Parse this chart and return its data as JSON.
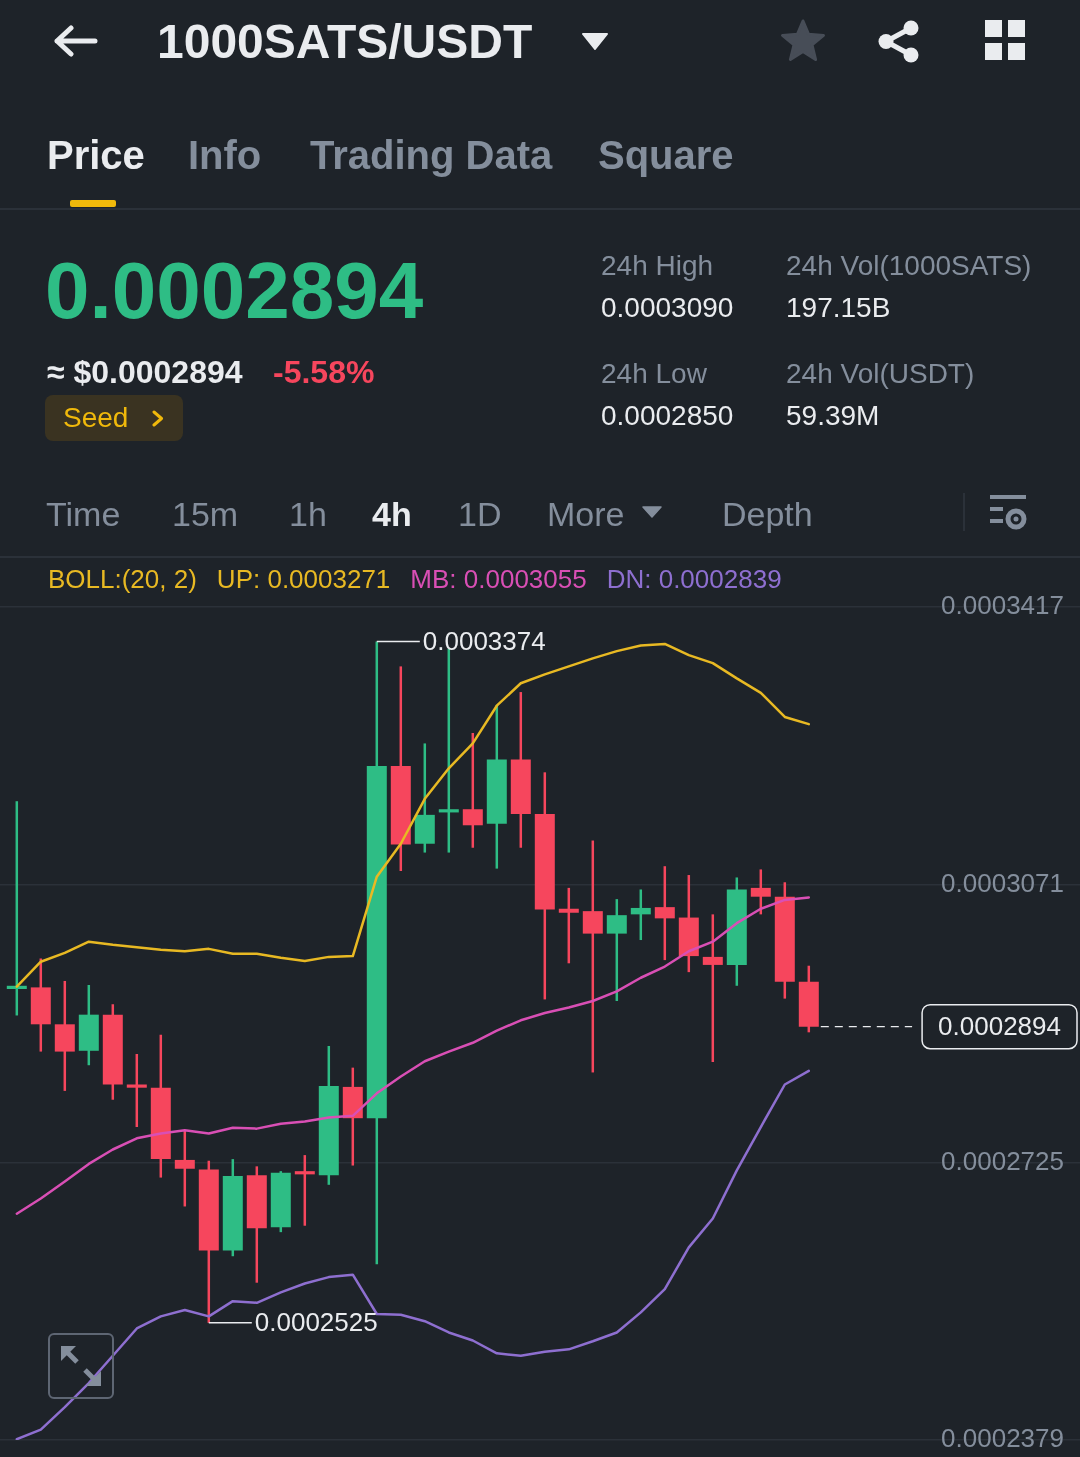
{
  "chart_data": {
    "type": "candlestick",
    "title": "1000SATS/USDT",
    "legend_title": "BOLL:(20, 2)",
    "categories": [
      null,
      null,
      null,
      null,
      null,
      null,
      null,
      null,
      null,
      null,
      null,
      null,
      null,
      null,
      null,
      null,
      null,
      null,
      null,
      null,
      null,
      null,
      null,
      null,
      null,
      null,
      null,
      null,
      null,
      null,
      null,
      null,
      null,
      null
    ],
    "ohlc": [
      [
        0.0002941,
        0.0003175,
        0.0002908,
        0.0002945
      ],
      [
        0.0002943,
        0.0002979,
        0.0002863,
        0.0002897
      ],
      [
        0.0002897,
        0.0002951,
        0.0002814,
        0.0002863
      ],
      [
        0.0002864,
        0.0002946,
        0.0002846,
        0.0002909
      ],
      [
        0.0002909,
        0.0002922,
        0.0002803,
        0.0002822
      ],
      [
        0.0002822,
        0.000286,
        0.0002769,
        0.0002818
      ],
      [
        0.0002818,
        0.0002884,
        0.0002706,
        0.0002729
      ],
      [
        0.0002728,
        0.0002765,
        0.000267,
        0.0002717
      ],
      [
        0.0002716,
        0.0002727,
        0.0002525,
        0.0002615
      ],
      [
        0.0002615,
        0.0002729,
        0.0002608,
        0.0002708
      ],
      [
        0.0002709,
        0.000272,
        0.0002575,
        0.0002643
      ],
      [
        0.0002644,
        0.0002714,
        0.0002638,
        0.0002712
      ],
      [
        0.0002714,
        0.0002734,
        0.0002646,
        0.000271
      ],
      [
        0.0002709,
        0.000287,
        0.0002697,
        0.000282
      ],
      [
        0.0002819,
        0.0002843,
        0.0002721,
        0.000278
      ],
      [
        0.000278,
        0.0003374,
        0.0002598,
        0.0003219
      ],
      [
        0.0003219,
        0.0003343,
        0.0003088,
        0.0003121
      ],
      [
        0.0003122,
        0.0003247,
        0.0003111,
        0.0003158
      ],
      [
        0.0003161,
        0.0003365,
        0.0003111,
        0.0003165
      ],
      [
        0.0003165,
        0.000326,
        0.0003117,
        0.0003145
      ],
      [
        0.0003147,
        0.0003295,
        0.0003091,
        0.0003227
      ],
      [
        0.0003227,
        0.0003311,
        0.0003117,
        0.0003159
      ],
      [
        0.0003159,
        0.0003211,
        0.0002928,
        0.000304
      ],
      [
        0.0003041,
        0.0003067,
        0.0002973,
        0.0003036
      ],
      [
        0.0003038,
        0.0003126,
        0.0002837,
        0.000301
      ],
      [
        0.000301,
        0.0003053,
        0.0002926,
        0.0003033
      ],
      [
        0.0003034,
        0.0003065,
        0.0003002,
        0.0003042
      ],
      [
        0.0003043,
        0.0003094,
        0.0002977,
        0.0003029
      ],
      [
        0.000303,
        0.0003083,
        0.0002962,
        0.0002982
      ],
      [
        0.0002981,
        0.0003034,
        0.000285,
        0.0002971
      ],
      [
        0.0002971,
        0.000308,
        0.0002945,
        0.0003065
      ],
      [
        0.0003067,
        0.000309,
        0.0003034,
        0.0003056
      ],
      [
        0.0003056,
        0.0003074,
        0.0002929,
        0.000295
      ],
      [
        0.000295,
        0.000297,
        0.0002887,
        0.0002894
      ]
    ],
    "colors": [
      "#2ebd85",
      "#f6465d",
      "#f6465d",
      "#2ebd85",
      "#f6465d",
      "#f6465d",
      "#f6465d",
      "#f6465d",
      "#f6465d",
      "#2ebd85",
      "#f6465d",
      "#2ebd85",
      "#f6465d",
      "#2ebd85",
      "#f6465d",
      "#2ebd85",
      "#f6465d",
      "#2ebd85",
      "#2ebd85",
      "#f6465d",
      "#2ebd85",
      "#f6465d",
      "#f6465d",
      "#f6465d",
      "#f6465d",
      "#2ebd85",
      "#2ebd85",
      "#f6465d",
      "#f6465d",
      "#f6465d",
      "#2ebd85",
      "#f6465d",
      "#f6465d",
      "#f6465d"
    ],
    "series": [
      {
        "name": "UP: 0.0003271",
        "type": "line",
        "color": "#e8b923",
        "values": [
          0.0002944,
          0.0002975,
          0.0002986,
          0.0003,
          0.0002996,
          0.0002993,
          0.000299,
          0.0002988,
          0.0002991,
          0.0002985,
          0.0002985,
          0.000298,
          0.0002976,
          0.0002981,
          0.0002982,
          0.0003081,
          0.0003122,
          0.0003178,
          0.0003216,
          0.0003247,
          0.0003294,
          0.0003322,
          0.0003333,
          0.0003343,
          0.0003353,
          0.0003362,
          0.0003369,
          0.0003371,
          0.0003357,
          0.0003347,
          0.0003328,
          0.000331,
          0.000328,
          0.0003271
        ]
      },
      {
        "name": "MB: 0.0003055",
        "type": "line",
        "color": "#d94fb5",
        "values": [
          0.0002661,
          0.000268,
          0.0002701,
          0.0002723,
          0.0002741,
          0.0002755,
          0.0002761,
          0.0002765,
          0.0002761,
          0.0002768,
          0.0002767,
          0.0002773,
          0.0002776,
          0.0002781,
          0.0002783,
          0.0002811,
          0.0002832,
          0.0002851,
          0.0002863,
          0.0002874,
          0.0002889,
          0.0002902,
          0.0002911,
          0.0002918,
          0.0002926,
          0.0002938,
          0.0002955,
          0.0002969,
          0.0002988,
          0.0003,
          0.0003023,
          0.0003041,
          0.0003052,
          0.0003055
        ]
      },
      {
        "name": "DN: 0.0002839",
        "type": "line",
        "color": "#8e6fd0",
        "values": [
          0.000238,
          0.0002392,
          0.000242,
          0.000245,
          0.0002484,
          0.0002518,
          0.0002533,
          0.0002541,
          0.0002533,
          0.0002552,
          0.000255,
          0.0002563,
          0.0002574,
          0.0002582,
          0.0002585,
          0.0002536,
          0.0002535,
          0.0002527,
          0.0002513,
          0.0002503,
          0.0002487,
          0.0002484,
          0.0002489,
          0.0002492,
          0.0002502,
          0.0002513,
          0.0002538,
          0.0002567,
          0.0002619,
          0.0002655,
          0.0002715,
          0.0002769,
          0.0002822,
          0.0002839
        ]
      }
    ],
    "ylim": [
      0.0002379,
      0.0003417
    ],
    "yticks": [
      0.0002379,
      0.0002725,
      0.0003071,
      0.0003417
    ],
    "grid": "y",
    "legend": "top",
    "marker": "none",
    "ref_lines": [
      {
        "axis": "y",
        "value": 0.0002894,
        "label": "0.0002894",
        "line_style": "dashed",
        "color": "#eaecef"
      }
    ],
    "annotations": [
      "0.0003374",
      "0.0002525",
      "Price",
      "Info",
      "Trading Data",
      "Square",
      "0.0002894",
      "≈ $0.0002894",
      "-5.58%",
      "Seed",
      "24h High",
      "0.0003090",
      "24h Vol(1000SATS)",
      "197.15B",
      "24h Low",
      "0.0002850",
      "24h Vol(USDT)",
      "59.39M",
      "Time",
      "15m",
      "1h",
      "4h",
      "1D",
      "More",
      "Depth"
    ]
  }
}
